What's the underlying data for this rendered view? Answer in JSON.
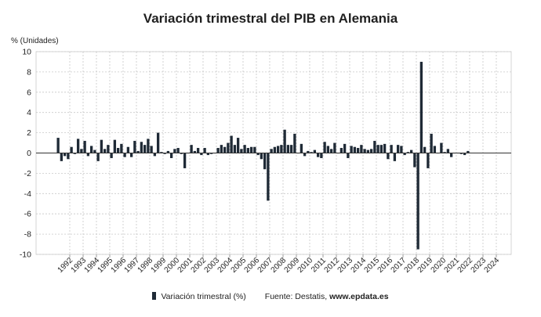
{
  "title": "Variación trimestral del PIB en Alemania",
  "colors": {
    "bar": "#1f2a36",
    "grid": "#c8c8c8",
    "zero": "#333333",
    "axis": "#888888"
  },
  "legend": {
    "series_label": "Variación trimestral (%)",
    "source_prefix": "Fuente: Destatis,",
    "source_site": "www.epdata.es"
  },
  "chart_data": {
    "type": "bar",
    "ylabel": "% (Unidades)",
    "xlabel": "",
    "ylim": [
      -10,
      10
    ],
    "yticks": [
      10,
      8,
      6,
      4,
      2,
      0,
      -2,
      -4,
      -6,
      -8,
      -10
    ],
    "grid": true,
    "x_tick_labels": [
      "1992",
      "1993",
      "1994",
      "1995",
      "1996",
      "1997",
      "1998",
      "1999",
      "2000",
      "2001",
      "2002",
      "2003",
      "2004",
      "2005",
      "2006",
      "2007",
      "2008",
      "2009",
      "2010",
      "2011",
      "2012",
      "2013",
      "2014",
      "2015",
      "2016",
      "2017",
      "2018",
      "2019",
      "2020",
      "2021",
      "2022",
      "2023",
      "2024"
    ],
    "series": [
      {
        "name": "Variación trimestral (%)",
        "start": "1991-Q1",
        "values": [
          1.5,
          -0.8,
          -0.3,
          -0.6,
          0.6,
          -0.1,
          1.4,
          0.4,
          1.2,
          -0.3,
          0.7,
          0.3,
          -0.8,
          1.3,
          0.4,
          0.8,
          -0.5,
          1.3,
          0.5,
          0.9,
          -0.4,
          0.6,
          -0.4,
          1.2,
          0.2,
          1.1,
          0.8,
          1.4,
          0.7,
          -0.3,
          2.0,
          0.1,
          -0.1,
          0.2,
          -0.5,
          0.4,
          0.5,
          -0.1,
          -1.5,
          0.0,
          0.8,
          0.2,
          0.5,
          -0.2,
          0.5,
          -0.2,
          -0.1,
          0.0,
          0.5,
          0.8,
          0.6,
          1.0,
          1.7,
          0.8,
          1.5,
          0.4,
          0.8,
          0.5,
          0.6,
          0.6,
          -0.2,
          -0.6,
          -1.6,
          -4.7,
          0.4,
          0.6,
          0.7,
          0.8,
          2.3,
          0.8,
          0.8,
          1.9,
          0.0,
          0.9,
          -0.3,
          0.2,
          0.1,
          0.3,
          -0.4,
          -0.5,
          1.1,
          0.7,
          0.4,
          1.0,
          0.0,
          0.5,
          0.9,
          -0.5,
          0.7,
          0.6,
          0.5,
          0.8,
          0.4,
          0.3,
          0.4,
          1.2,
          0.8,
          0.8,
          0.9,
          -0.6,
          0.8,
          -0.8,
          0.8,
          0.7,
          -0.2,
          0.1,
          0.3,
          -1.4,
          -9.5,
          9.0,
          0.6,
          -1.5,
          1.9,
          0.7,
          0.0,
          1.0,
          0.1,
          0.4,
          -0.4,
          0.0,
          0.0,
          -0.1,
          -0.2,
          0.2
        ]
      }
    ]
  }
}
